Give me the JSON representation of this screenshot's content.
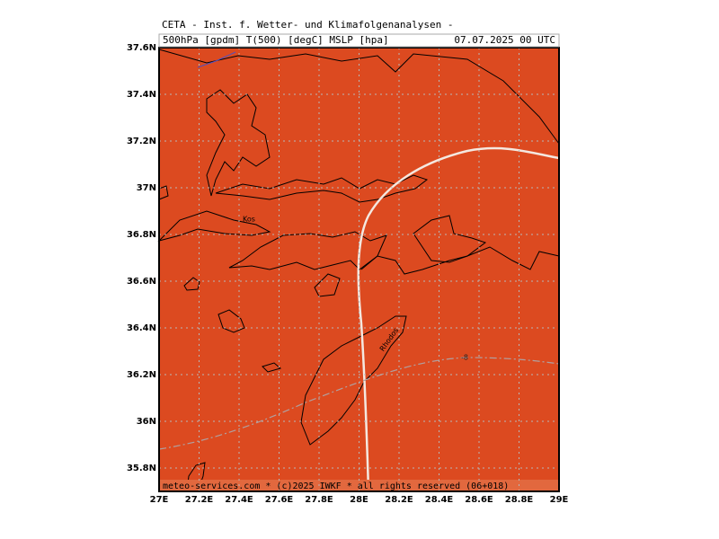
{
  "header": {
    "title": "CETA - Inst. f. Wetter- und Klimafolgenanalysen -",
    "fields": "500hPa [gpdm] T(500) [degC] MSLP [hpa]",
    "valid": "07.07.2025 00 UTC"
  },
  "map": {
    "xlim": [
      27,
      29
    ],
    "ylim": [
      35.7,
      37.6
    ],
    "xticks": [
      {
        "value": 27,
        "label": "27E"
      },
      {
        "value": 27.2,
        "label": "27.2E"
      },
      {
        "value": 27.4,
        "label": "27.4E"
      },
      {
        "value": 27.6,
        "label": "27.6E"
      },
      {
        "value": 27.8,
        "label": "27.8E"
      },
      {
        "value": 28,
        "label": "28E"
      },
      {
        "value": 28.2,
        "label": "28.2E"
      },
      {
        "value": 28.4,
        "label": "28.4E"
      },
      {
        "value": 28.6,
        "label": "28.6E"
      },
      {
        "value": 28.8,
        "label": "28.8E"
      },
      {
        "value": 29,
        "label": "29E"
      }
    ],
    "yticks": [
      {
        "value": 35.8,
        "label": "35.8N"
      },
      {
        "value": 36,
        "label": "36N"
      },
      {
        "value": 36.2,
        "label": "36.2N"
      },
      {
        "value": 36.4,
        "label": "36.4N"
      },
      {
        "value": 36.6,
        "label": "36.6N"
      },
      {
        "value": 36.8,
        "label": "36.8N"
      },
      {
        "value": 37,
        "label": "37N"
      },
      {
        "value": 37.2,
        "label": "37.2N"
      },
      {
        "value": 37.4,
        "label": "37.4N"
      },
      {
        "value": 37.6,
        "label": "37.6N"
      }
    ],
    "places": [
      "Kos",
      "Rhodos"
    ],
    "contour_label": "-8",
    "grid": true,
    "color": "#dc4a20"
  },
  "footer": "meteo-services.com * (c)2025 IWKF * all rights reserved (06+018)"
}
